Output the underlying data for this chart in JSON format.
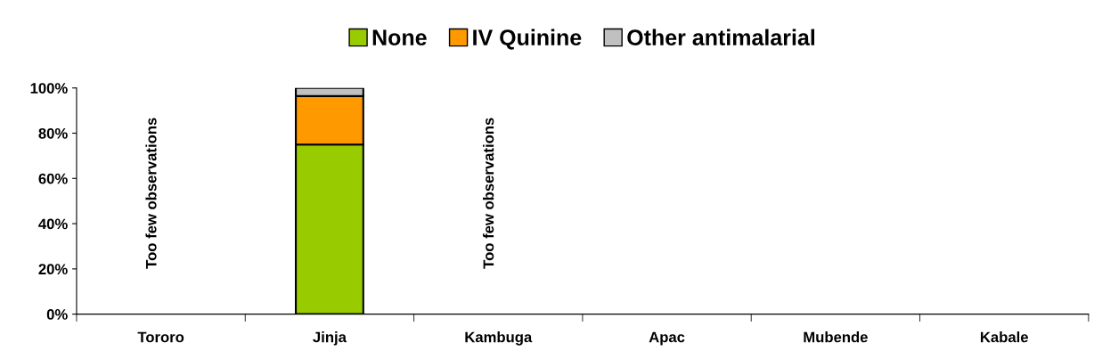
{
  "chart_data": {
    "type": "bar",
    "stacked": true,
    "categories": [
      "Tororo",
      "Jinja",
      "Kambuga",
      "Apac",
      "Mubende",
      "Kabale"
    ],
    "series": [
      {
        "name": "None",
        "color": "#99cc00",
        "values": [
          null,
          75,
          null,
          null,
          null,
          null
        ]
      },
      {
        "name": "IV Quinine",
        "color": "#ff9900",
        "values": [
          null,
          21.4,
          null,
          null,
          null,
          null
        ]
      },
      {
        "name": "Other antimalarial",
        "color": "#c0c0c0",
        "values": [
          null,
          3.6,
          null,
          null,
          null,
          null
        ]
      }
    ],
    "ylim": [
      0,
      100
    ],
    "yticks": [
      {
        "value": 0,
        "label": "0%"
      },
      {
        "value": 20,
        "label": "20%"
      },
      {
        "value": 40,
        "label": "40%"
      },
      {
        "value": 60,
        "label": "60%"
      },
      {
        "value": 80,
        "label": "80%"
      },
      {
        "value": 100,
        "label": "100%"
      }
    ],
    "annotations": [
      "Too few observations",
      "Too few observations"
    ],
    "legend": "top",
    "grid": false
  }
}
